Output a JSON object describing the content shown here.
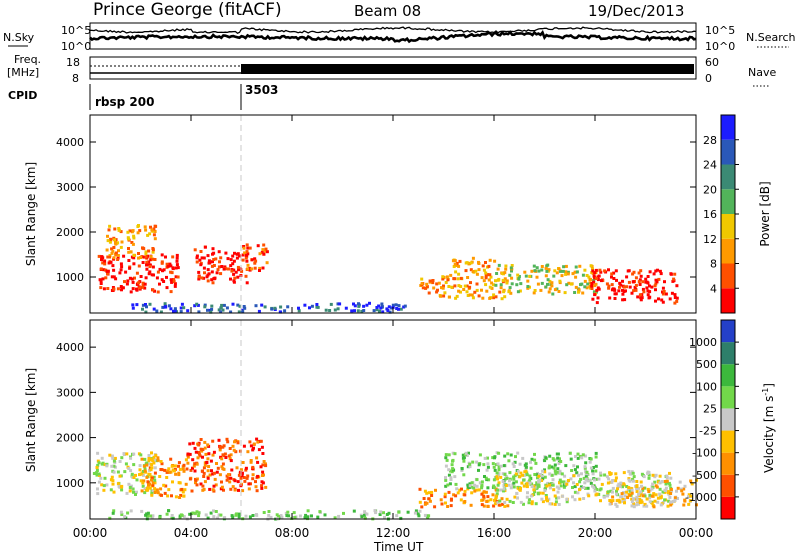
{
  "header": {
    "title": "Prince George (fitACF)",
    "beam": "Beam 08",
    "date": "19/Dec/2013"
  },
  "top_panels": {
    "nsky_label": "N.Sky",
    "nsearch_label": "N.Search",
    "noise_ticks_left": [
      "10^5",
      "10^0"
    ],
    "noise_ticks_right": [
      "10^5",
      "10^0"
    ],
    "freq_label_1": "Freq.",
    "freq_label_2": "[MHz]",
    "freq_ticks": [
      "18",
      "8"
    ],
    "nave_label": "Nave",
    "nave_ticks": [
      "60",
      "0"
    ],
    "cpid_label": "CPID",
    "cpid_entries": [
      {
        "name": "rbsp 200",
        "start_hour": 0
      },
      {
        "name": "3503",
        "start_hour": 6
      }
    ]
  },
  "time_axis": {
    "label": "Time UT",
    "ticks": [
      "00:00",
      "04:00",
      "08:00",
      "12:00",
      "16:00",
      "20:00",
      "00:00"
    ]
  },
  "colors": {
    "power_scale": [
      "#1c1cff",
      "#2a58b8",
      "#3b8a74",
      "#52b45a",
      "#f0c800",
      "#ff9a00",
      "#ff5000",
      "#ff0000"
    ],
    "velocity_scale": [
      "#2440c8",
      "#2e7f6a",
      "#3cb83c",
      "#72d84a",
      "#c8c8c8",
      "#ffc000",
      "#ff9000",
      "#ff5000",
      "#ff0000"
    ]
  },
  "chart_data": [
    {
      "type": "heatmap",
      "title": "Power",
      "xlabel": "Time UT",
      "ylabel": "Slant Range [km]",
      "xlim": [
        0,
        24
      ],
      "ylim": [
        200,
        4600
      ],
      "yticks": [
        "1000",
        "2000",
        "3000",
        "4000"
      ],
      "colorbar_label": "Power [dB]",
      "colorbar_ticks": [
        "28",
        "24",
        "20",
        "16",
        "12",
        "8",
        "4"
      ],
      "regions": [
        {
          "t0": 0.3,
          "t1": 3.5,
          "r0": 700,
          "r1": 1550,
          "level": 7
        },
        {
          "t0": 0.6,
          "t1": 2.6,
          "r0": 1450,
          "r1": 2200,
          "level": 5
        },
        {
          "t0": 4.1,
          "t1": 6.2,
          "r0": 900,
          "r1": 1700,
          "level": 7
        },
        {
          "t0": 6.0,
          "t1": 7.0,
          "r0": 1150,
          "r1": 1750,
          "level": 6
        },
        {
          "t0": 13.0,
          "t1": 16.4,
          "r0": 550,
          "r1": 1050,
          "level": 5
        },
        {
          "t0": 14.2,
          "t1": 16.0,
          "r0": 1050,
          "r1": 1450,
          "level": 5
        },
        {
          "t0": 16.0,
          "t1": 20.0,
          "r0": 650,
          "r1": 1300,
          "level": 4
        },
        {
          "t0": 19.8,
          "t1": 23.2,
          "r0": 450,
          "r1": 1200,
          "level": 7
        },
        {
          "t0": 1.5,
          "t1": 12.5,
          "r0": 250,
          "r1": 450,
          "level": 1
        }
      ]
    },
    {
      "type": "heatmap",
      "title": "Velocity",
      "xlabel": "Time UT",
      "ylabel": "Slant Range [km]",
      "xlim": [
        0,
        24
      ],
      "ylim": [
        200,
        4600
      ],
      "yticks": [
        "1000",
        "2000",
        "3000",
        "4000"
      ],
      "colorbar_label": "Velocity [m s-1]",
      "colorbar_ticks": [
        "1000",
        "500",
        "100",
        "25",
        "-25",
        "-100",
        "-500",
        "-1000"
      ],
      "regions": [
        {
          "t0": 0.1,
          "t1": 2.6,
          "r0": 750,
          "r1": 1700,
          "level": 4
        },
        {
          "t0": 2.0,
          "t1": 3.8,
          "r0": 700,
          "r1": 1600,
          "level": 6
        },
        {
          "t0": 3.8,
          "t1": 6.9,
          "r0": 850,
          "r1": 2000,
          "level": 7
        },
        {
          "t0": 13.0,
          "t1": 16.5,
          "r0": 500,
          "r1": 900,
          "level": 6
        },
        {
          "t0": 14.0,
          "t1": 20.0,
          "r0": 900,
          "r1": 1700,
          "level": 3
        },
        {
          "t0": 16.0,
          "t1": 23.0,
          "r0": 550,
          "r1": 1300,
          "level": 4
        },
        {
          "t0": 20.5,
          "t1": 24.0,
          "r0": 500,
          "r1": 1100,
          "level": 5
        },
        {
          "t0": 0.5,
          "t1": 13.5,
          "r0": 230,
          "r1": 420,
          "level": 3
        }
      ]
    }
  ]
}
